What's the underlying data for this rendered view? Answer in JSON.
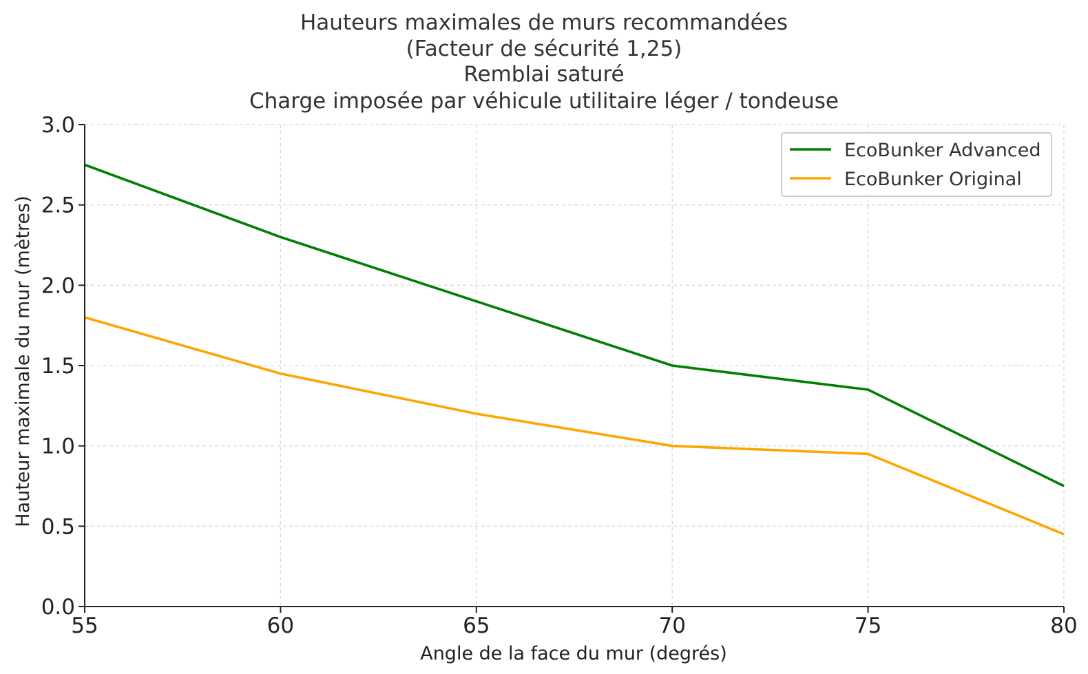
{
  "chart_data": {
    "type": "line",
    "title_lines": [
      "Hauteurs maximales de murs recommandées",
      "(Facteur de sécurité 1,25)",
      "Remblai saturé",
      "Charge imposée par véhicule utilitaire léger / tondeuse"
    ],
    "xlabel": "Angle de la face du mur (degrés)",
    "ylabel": "Hauteur maximale du mur (mètres)",
    "x": [
      55,
      60,
      65,
      70,
      75,
      80
    ],
    "xlim": [
      55,
      80
    ],
    "ylim": [
      0.0,
      3.0
    ],
    "xticks": [
      "55",
      "60",
      "65",
      "70",
      "75",
      "80"
    ],
    "yticks": [
      "0.0",
      "0.5",
      "1.0",
      "1.5",
      "2.0",
      "2.5",
      "3.0"
    ],
    "grid": true,
    "legend_position": "top-right",
    "series": [
      {
        "name": "EcoBunker Advanced",
        "color": "#007f00",
        "values": [
          2.75,
          2.3,
          1.9,
          1.5,
          1.35,
          0.75
        ]
      },
      {
        "name": "EcoBunker Original",
        "color": "#ffa500",
        "values": [
          1.8,
          1.45,
          1.2,
          1.0,
          0.95,
          0.45
        ]
      }
    ]
  }
}
